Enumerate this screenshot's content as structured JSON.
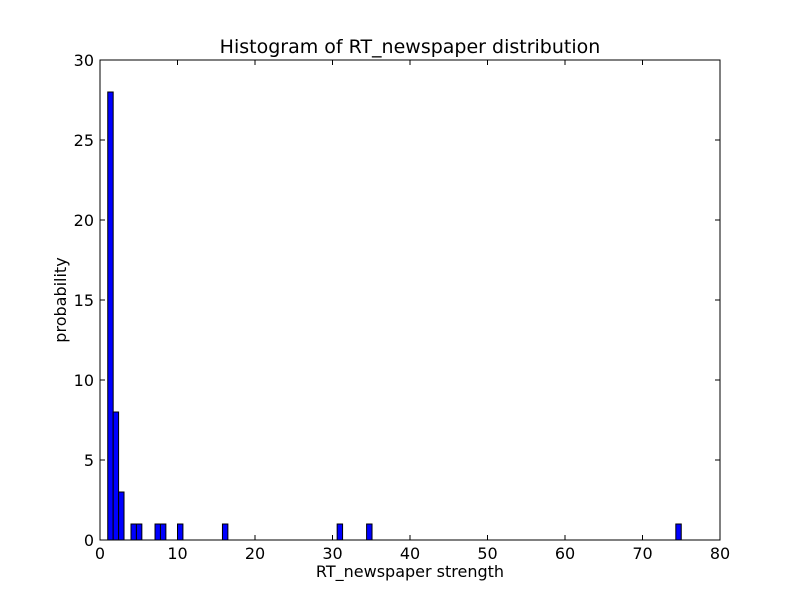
{
  "chart_data": {
    "type": "bar",
    "title": "Histogram of RT_newspaper  distribution",
    "xlabel": "RT_newspaper  strength",
    "ylabel": "probability",
    "xlim": [
      0,
      80
    ],
    "ylim": [
      0,
      30
    ],
    "xticks": [
      "0",
      "10",
      "20",
      "30",
      "40",
      "50",
      "60",
      "70",
      "80"
    ],
    "yticks": [
      "0",
      "5",
      "10",
      "15",
      "20",
      "25",
      "30"
    ],
    "grid": false,
    "bar_color": "#0000ff",
    "edge_color": "#000000",
    "bins": [
      {
        "x0": 1.0,
        "x1": 1.7,
        "count": 28
      },
      {
        "x0": 1.7,
        "x1": 2.4,
        "count": 8
      },
      {
        "x0": 2.4,
        "x1": 3.1,
        "count": 3
      },
      {
        "x0": 4.0,
        "x1": 4.7,
        "count": 1
      },
      {
        "x0": 4.7,
        "x1": 5.4,
        "count": 1
      },
      {
        "x0": 7.1,
        "x1": 7.8,
        "count": 1
      },
      {
        "x0": 7.8,
        "x1": 8.5,
        "count": 1
      },
      {
        "x0": 10.0,
        "x1": 10.7,
        "count": 1
      },
      {
        "x0": 15.8,
        "x1": 16.5,
        "count": 1
      },
      {
        "x0": 30.6,
        "x1": 31.3,
        "count": 1
      },
      {
        "x0": 34.4,
        "x1": 35.1,
        "count": 1
      },
      {
        "x0": 74.3,
        "x1": 75.0,
        "count": 1
      }
    ]
  }
}
